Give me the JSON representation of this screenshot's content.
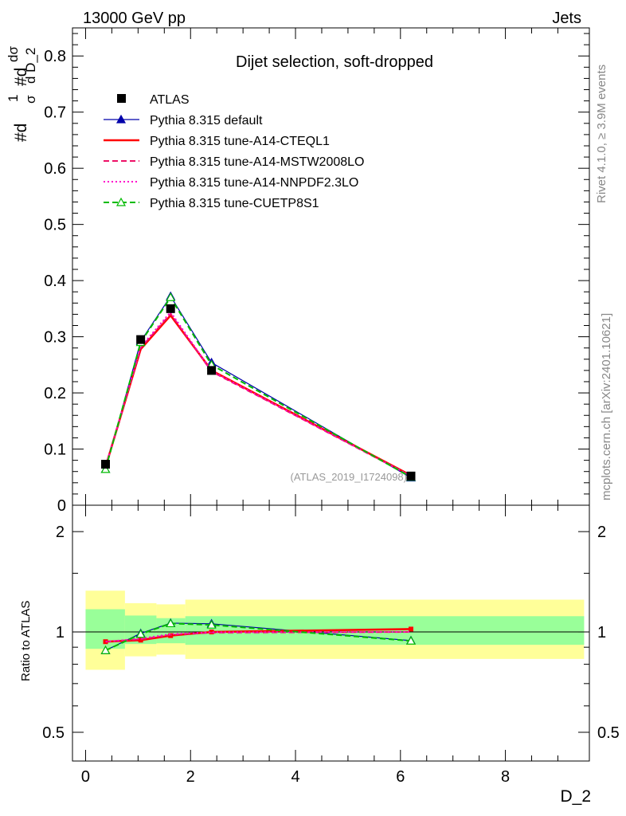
{
  "header": {
    "left": "13000 GeV pp",
    "right": "Jets"
  },
  "side": {
    "rivet": "Rivet 4.1.0, ≥ 3.9M events",
    "mcplots": "mcplots.cern.ch [arXiv:2401.10621]"
  },
  "chart_data": [
    {
      "type": "line",
      "title": "Dijet selection, soft-dropped",
      "ylabel_parts": {
        "num": "#d",
        "den": "σ",
        "one": "1",
        "dnum": "dσ",
        "dden": "d D_2"
      },
      "xlabel": "D_2",
      "watermark": "(ATLAS_2019_I1724098)",
      "xlim": [
        -0.25,
        9.6
      ],
      "ylim": [
        0,
        0.85
      ],
      "yticks": [
        0.1,
        0.2,
        0.3,
        0.4,
        0.5,
        0.6,
        0.7,
        0.8
      ],
      "ytick_labels": [
        "0.1",
        "0.2",
        "0.3",
        "0.4",
        "0.5",
        "0.6",
        "0.7",
        "0.8"
      ],
      "bottom_tick_label": "0",
      "x": [
        0.38,
        1.05,
        1.62,
        2.4,
        6.2
      ],
      "data": {
        "name": "ATLAS",
        "values": [
          0.073,
          0.295,
          0.35,
          0.24,
          0.052
        ]
      },
      "series": [
        {
          "name": "Pythia 8.315 default",
          "color": "#0000aa",
          "style": "solid",
          "marker": "triangle-filled",
          "values": [
            0.064,
            0.292,
            0.372,
            0.254,
            0.049
          ]
        },
        {
          "name": "Pythia 8.315 tune-A14-CTEQL1",
          "color": "#ff0000",
          "style": "solid-thick",
          "marker": "none",
          "values": [
            0.068,
            0.278,
            0.338,
            0.24,
            0.053
          ]
        },
        {
          "name": "Pythia 8.315 tune-A14-MSTW2008LO",
          "color": "#ee1166",
          "style": "dashed",
          "marker": "none",
          "values": [
            0.068,
            0.28,
            0.341,
            0.238,
            0.052
          ]
        },
        {
          "name": "Pythia 8.315 tune-A14-NNPDF2.3LO",
          "color": "#ff00cc",
          "style": "dotted",
          "marker": "none",
          "values": [
            0.068,
            0.282,
            0.344,
            0.239,
            0.052
          ]
        },
        {
          "name": "Pythia 8.315 tune-CUETP8S1",
          "color": "#00bb00",
          "style": "dashed",
          "marker": "triangle-open",
          "values": [
            0.064,
            0.29,
            0.37,
            0.25,
            0.05
          ]
        }
      ]
    },
    {
      "type": "line",
      "title": "",
      "ylabel": "Ratio to ATLAS",
      "xlabel": "D_2",
      "xlim": [
        -0.25,
        9.6
      ],
      "ylim": [
        0.41,
        2.4
      ],
      "yscale": "log",
      "yticks": [
        0.5,
        1,
        2
      ],
      "ytick_labels": [
        "0.5",
        "1",
        "2"
      ],
      "xticks": [
        0,
        2,
        4,
        6,
        8
      ],
      "xtick_labels": [
        "0",
        "2",
        "4",
        "6",
        "8"
      ],
      "x": [
        0.38,
        1.05,
        1.62,
        2.4,
        6.2
      ],
      "bands": [
        {
          "x0": 0.0,
          "x1": 0.75,
          "stat_lo": 0.89,
          "stat_hi": 1.17,
          "syst_lo": 0.77,
          "syst_hi": 1.33
        },
        {
          "x0": 0.75,
          "x1": 1.35,
          "stat_lo": 0.92,
          "stat_hi": 1.12,
          "syst_lo": 0.845,
          "syst_hi": 1.22
        },
        {
          "x0": 1.35,
          "x1": 1.9,
          "stat_lo": 0.925,
          "stat_hi": 1.1,
          "syst_lo": 0.855,
          "syst_hi": 1.21
        },
        {
          "x0": 1.9,
          "x1": 9.5,
          "stat_lo": 0.915,
          "stat_hi": 1.115,
          "syst_lo": 0.83,
          "syst_hi": 1.25
        }
      ],
      "series": [
        {
          "name": "Pythia 8.315 default",
          "color": "#0000aa",
          "style": "solid",
          "marker": "triangle-filled",
          "values": [
            0.88,
            0.99,
            1.063,
            1.058,
            0.942
          ]
        },
        {
          "name": "Pythia 8.315 tune-A14-CTEQL1",
          "color": "#ff0000",
          "style": "solid-thick",
          "marker": "square",
          "values": [
            0.935,
            0.945,
            0.975,
            1.0,
            1.02
          ]
        },
        {
          "name": "Pythia 8.315 tune-A14-MSTW2008LO",
          "color": "#ee1166",
          "style": "dashed",
          "marker": "none",
          "values": [
            0.935,
            0.95,
            0.98,
            0.995,
            1.0
          ]
        },
        {
          "name": "Pythia 8.315 tune-A14-NNPDF2.3LO",
          "color": "#ff00cc",
          "style": "dotted",
          "marker": "none",
          "values": [
            0.935,
            0.955,
            0.985,
            0.998,
            1.0
          ]
        },
        {
          "name": "Pythia 8.315 tune-CUETP8S1",
          "color": "#00bb00",
          "style": "dashed",
          "marker": "triangle-open",
          "values": [
            0.88,
            0.985,
            1.06,
            1.05,
            0.94
          ]
        }
      ]
    }
  ]
}
